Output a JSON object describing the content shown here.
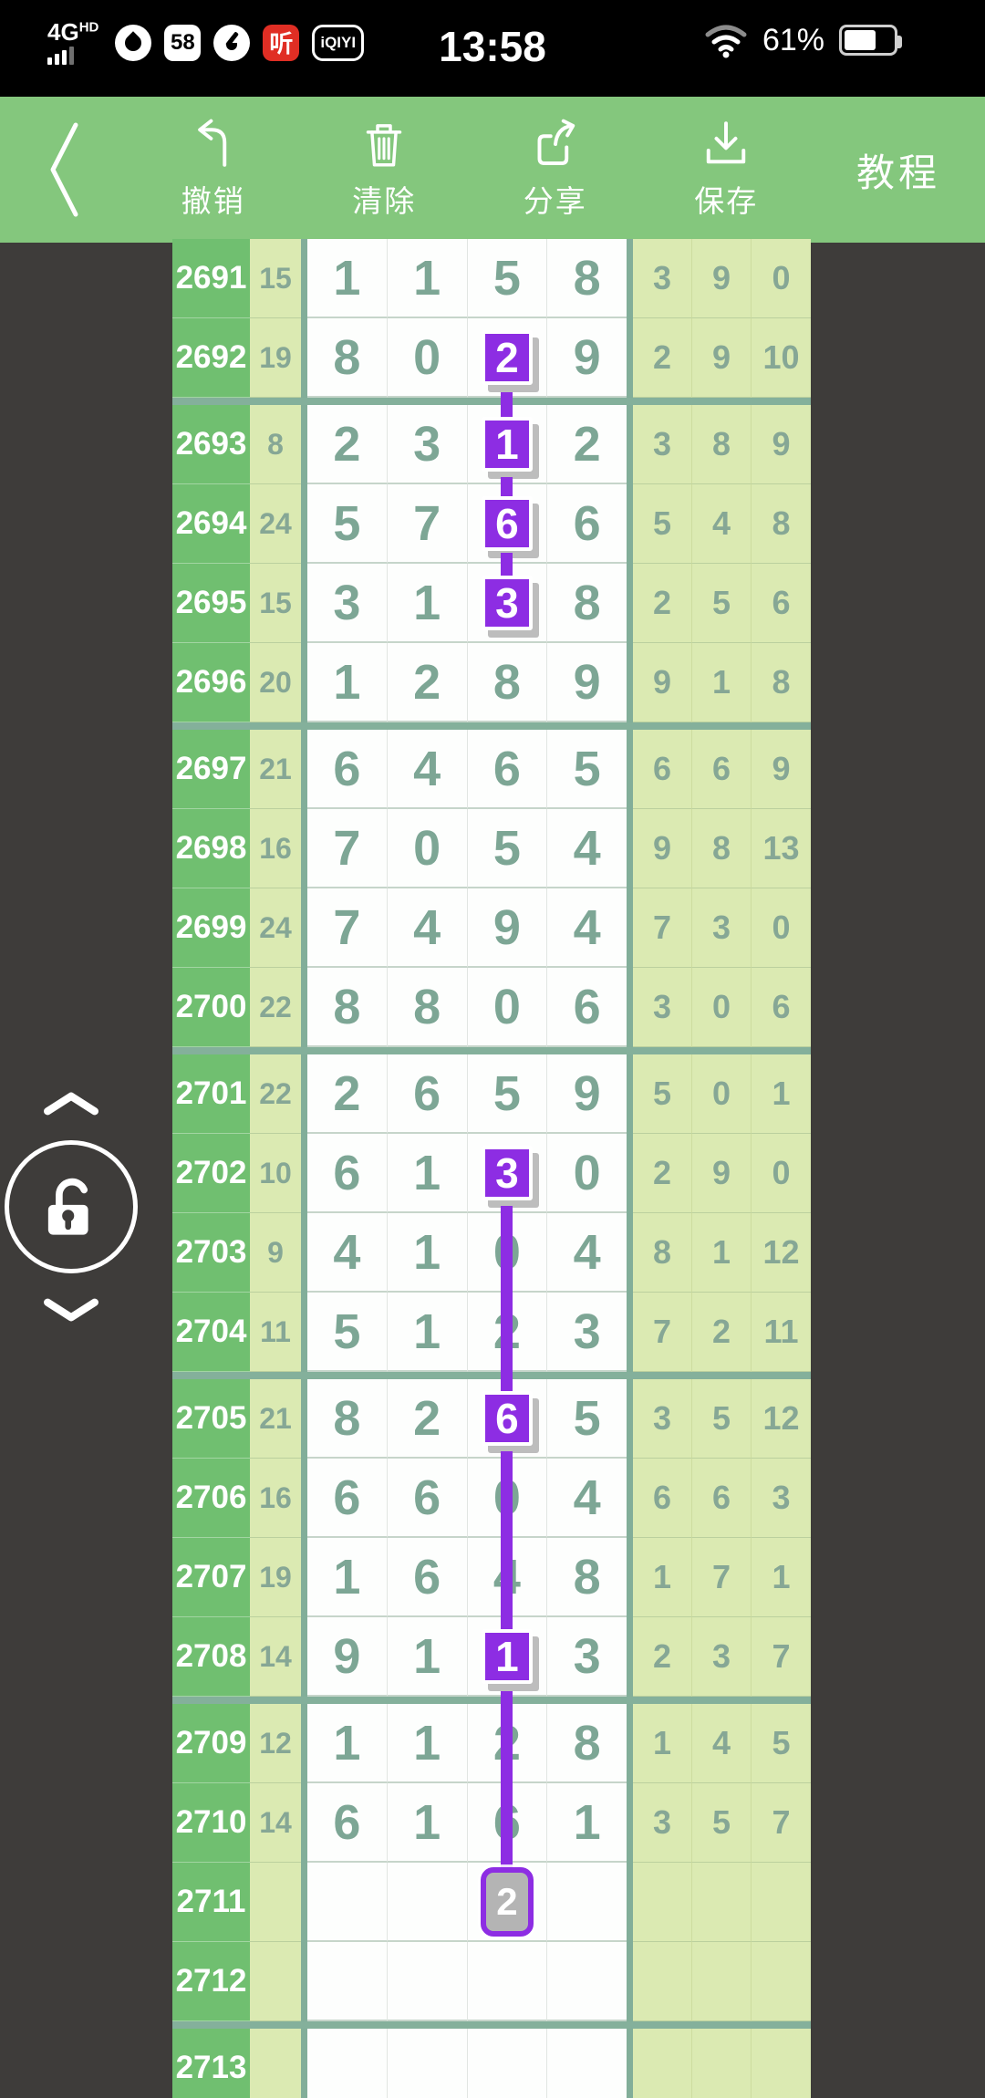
{
  "status_bar": {
    "network": "4G",
    "network_badge": "HD",
    "icon_58": "58",
    "icon_ting": "听",
    "icon_iqiyi": "iQIYI",
    "time": "13:58",
    "battery_percent": "61%"
  },
  "toolbar": {
    "buttons": [
      {
        "id": "undo",
        "label": "撤销"
      },
      {
        "id": "clear",
        "label": "清除"
      },
      {
        "id": "share",
        "label": "分享"
      },
      {
        "id": "save",
        "label": "保存"
      }
    ],
    "tutorial_label": "教程"
  },
  "side_control": {
    "state": "unlocked",
    "icons": [
      "chevron-up",
      "padlock-open",
      "chevron-down"
    ]
  },
  "table": {
    "mark_col": 2,
    "colors": {
      "highlight_purple": "#8d2de3",
      "pending_gray": "#b4b4b4",
      "group_separator": "#84b09b",
      "row_number_green": "#70bf70",
      "light_cell_green": "#dbeab2",
      "digit_green": "#7da695",
      "toolbar_green": "#84c77d"
    },
    "rows": [
      {
        "period": "2691",
        "sum": "15",
        "digits": [
          "1",
          "1",
          "5",
          "8"
        ],
        "tail": [
          "3",
          "9",
          "0"
        ],
        "mark": null,
        "link": null,
        "break_after": false
      },
      {
        "period": "2692",
        "sum": "19",
        "digits": [
          "8",
          "0",
          "2",
          "9"
        ],
        "tail": [
          "2",
          "9",
          "10"
        ],
        "mark": "box",
        "link": "down",
        "break_after": true
      },
      {
        "period": "2693",
        "sum": "8",
        "digits": [
          "2",
          "3",
          "1",
          "2"
        ],
        "tail": [
          "3",
          "8",
          "9"
        ],
        "mark": "box",
        "link": "both",
        "break_after": false
      },
      {
        "period": "2694",
        "sum": "24",
        "digits": [
          "5",
          "7",
          "6",
          "6"
        ],
        "tail": [
          "5",
          "4",
          "8"
        ],
        "mark": "box",
        "link": "both",
        "break_after": false
      },
      {
        "period": "2695",
        "sum": "15",
        "digits": [
          "3",
          "1",
          "3",
          "8"
        ],
        "tail": [
          "2",
          "5",
          "6"
        ],
        "mark": "box",
        "link": "up",
        "break_after": false
      },
      {
        "period": "2696",
        "sum": "20",
        "digits": [
          "1",
          "2",
          "8",
          "9"
        ],
        "tail": [
          "9",
          "1",
          "8"
        ],
        "mark": null,
        "link": null,
        "break_after": true
      },
      {
        "period": "2697",
        "sum": "21",
        "digits": [
          "6",
          "4",
          "6",
          "5"
        ],
        "tail": [
          "6",
          "6",
          "9"
        ],
        "mark": null,
        "link": null,
        "break_after": false
      },
      {
        "period": "2698",
        "sum": "16",
        "digits": [
          "7",
          "0",
          "5",
          "4"
        ],
        "tail": [
          "9",
          "8",
          "13"
        ],
        "mark": null,
        "link": null,
        "break_after": false
      },
      {
        "period": "2699",
        "sum": "24",
        "digits": [
          "7",
          "4",
          "9",
          "4"
        ],
        "tail": [
          "7",
          "3",
          "0"
        ],
        "mark": null,
        "link": null,
        "break_after": false
      },
      {
        "period": "2700",
        "sum": "22",
        "digits": [
          "8",
          "8",
          "0",
          "6"
        ],
        "tail": [
          "3",
          "0",
          "6"
        ],
        "mark": null,
        "link": null,
        "break_after": true
      },
      {
        "period": "2701",
        "sum": "22",
        "digits": [
          "2",
          "6",
          "5",
          "9"
        ],
        "tail": [
          "5",
          "0",
          "1"
        ],
        "mark": null,
        "link": null,
        "break_after": false
      },
      {
        "period": "2702",
        "sum": "10",
        "digits": [
          "6",
          "1",
          "3",
          "0"
        ],
        "tail": [
          "2",
          "9",
          "0"
        ],
        "mark": "box",
        "link": "down",
        "break_after": false
      },
      {
        "period": "2703",
        "sum": "9",
        "digits": [
          "4",
          "1",
          "0",
          "4"
        ],
        "tail": [
          "8",
          "1",
          "12"
        ],
        "mark": null,
        "link": "through",
        "break_after": false
      },
      {
        "period": "2704",
        "sum": "11",
        "digits": [
          "5",
          "1",
          "2",
          "3"
        ],
        "tail": [
          "7",
          "2",
          "11"
        ],
        "mark": null,
        "link": "through",
        "break_after": true
      },
      {
        "period": "2705",
        "sum": "21",
        "digits": [
          "8",
          "2",
          "6",
          "5"
        ],
        "tail": [
          "3",
          "5",
          "12"
        ],
        "mark": "box",
        "link": "both",
        "break_after": false
      },
      {
        "period": "2706",
        "sum": "16",
        "digits": [
          "6",
          "6",
          "0",
          "4"
        ],
        "tail": [
          "6",
          "6",
          "3"
        ],
        "mark": null,
        "link": "through",
        "break_after": false
      },
      {
        "period": "2707",
        "sum": "19",
        "digits": [
          "1",
          "6",
          "4",
          "8"
        ],
        "tail": [
          "1",
          "7",
          "1"
        ],
        "mark": null,
        "link": "through",
        "break_after": false
      },
      {
        "period": "2708",
        "sum": "14",
        "digits": [
          "9",
          "1",
          "1",
          "3"
        ],
        "tail": [
          "2",
          "3",
          "7"
        ],
        "mark": "box",
        "link": "both",
        "break_after": true
      },
      {
        "period": "2709",
        "sum": "12",
        "digits": [
          "1",
          "1",
          "2",
          "8"
        ],
        "tail": [
          "1",
          "4",
          "5"
        ],
        "mark": null,
        "link": "through",
        "break_after": false
      },
      {
        "period": "2710",
        "sum": "14",
        "digits": [
          "6",
          "1",
          "6",
          "1"
        ],
        "tail": [
          "3",
          "5",
          "7"
        ],
        "mark": null,
        "link": "through",
        "break_after": false
      },
      {
        "period": "2711",
        "sum": "",
        "digits": [
          "",
          "",
          "2",
          ""
        ],
        "tail": [
          "",
          "",
          ""
        ],
        "mark": "gray",
        "link": "up",
        "break_after": false
      },
      {
        "period": "2712",
        "sum": "",
        "digits": [
          "",
          "",
          "",
          ""
        ],
        "tail": [
          "",
          "",
          ""
        ],
        "mark": null,
        "link": null,
        "break_after": true
      },
      {
        "period": "2713",
        "sum": "",
        "digits": [
          "",
          "",
          "",
          ""
        ],
        "tail": [
          "",
          "",
          ""
        ],
        "mark": null,
        "link": null,
        "break_after": false
      }
    ]
  }
}
